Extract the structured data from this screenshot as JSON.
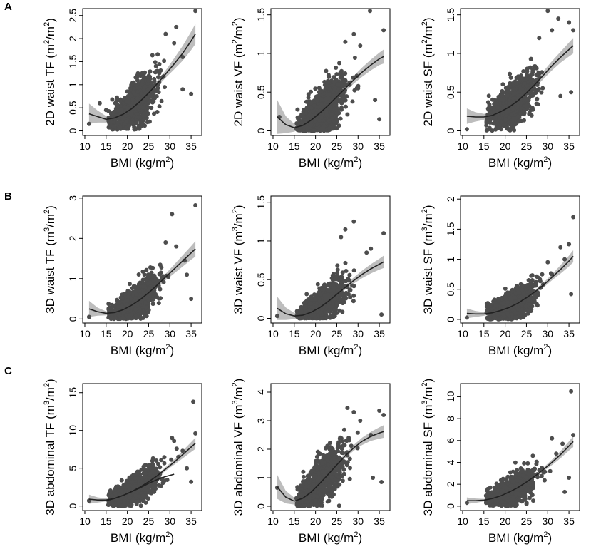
{
  "colors": {
    "point": "#4d4d4d",
    "line": "#222222",
    "band": "#bdbdbd",
    "axis": "#000000",
    "background": "#ffffff"
  },
  "rows": [
    {
      "letter": "A"
    },
    {
      "letter": "B"
    },
    {
      "letter": "C"
    }
  ],
  "shared": {
    "xlabel": "BMI (kg/m²)",
    "xlabel_base": "BMI (kg/m",
    "xlabel_sup": "2",
    "xlabel_close": ")"
  },
  "chart_data": [
    {
      "panel": "A-1",
      "type": "scatter",
      "ylabel": "2D waist TF (m²/m²)",
      "ylabel_prefix": "2D waist TF",
      "unit_num_sup": "2",
      "unit_den_sup": "2",
      "xlim": [
        9.5,
        37.5
      ],
      "ylim": [
        -0.1,
        2.65
      ],
      "xticks": [
        10,
        15,
        20,
        25,
        30,
        35
      ],
      "yticks": [
        0,
        0.5,
        1,
        1.5,
        2,
        2.5
      ],
      "fit": {
        "x": [
          11,
          13,
          15,
          17,
          19,
          21,
          23,
          25,
          27,
          29,
          31,
          33,
          35,
          36
        ],
        "y": [
          0.37,
          0.31,
          0.25,
          0.28,
          0.36,
          0.48,
          0.64,
          0.82,
          1.02,
          1.23,
          1.45,
          1.68,
          1.95,
          2.1
        ],
        "band": [
          0.22,
          0.13,
          0.07,
          0.04,
          0.03,
          0.03,
          0.03,
          0.04,
          0.06,
          0.08,
          0.12,
          0.16,
          0.2,
          0.22
        ]
      },
      "cloud": {
        "x_center": 21.5,
        "x_spread": 2.6,
        "slope_scale": 1.0,
        "noise": 0.28,
        "min_y": 0.03
      },
      "outliers": [
        [
          36,
          2.6
        ],
        [
          35,
          0.8
        ],
        [
          31.5,
          2.25
        ],
        [
          33,
          1.6
        ],
        [
          29,
          2.1
        ],
        [
          11,
          0.15
        ],
        [
          13.5,
          0.6
        ],
        [
          15,
          0.45
        ],
        [
          33,
          0.9
        ],
        [
          31,
          1.9
        ]
      ]
    },
    {
      "panel": "A-2",
      "type": "scatter",
      "ylabel": "2D waist VF (m²/m²)",
      "ylabel_prefix": "2D waist VF",
      "unit_num_sup": "2",
      "unit_den_sup": "2",
      "xlim": [
        9.5,
        37.5
      ],
      "ylim": [
        -0.06,
        1.58
      ],
      "xticks": [
        10,
        15,
        20,
        25,
        30,
        35
      ],
      "yticks": [
        0,
        0.5,
        1,
        1.5
      ],
      "fit": {
        "x": [
          11,
          13,
          15,
          17,
          19,
          21,
          23,
          25,
          27,
          29,
          31,
          33,
          35,
          36
        ],
        "y": [
          0.18,
          0.08,
          0.04,
          0.07,
          0.14,
          0.23,
          0.33,
          0.44,
          0.55,
          0.66,
          0.76,
          0.85,
          0.93,
          0.96
        ],
        "band": [
          0.22,
          0.11,
          0.05,
          0.03,
          0.02,
          0.02,
          0.02,
          0.03,
          0.04,
          0.05,
          0.06,
          0.07,
          0.08,
          0.09
        ]
      },
      "cloud": {
        "x_center": 21.5,
        "x_spread": 2.6,
        "slope_scale": 1.0,
        "noise": 0.18,
        "min_y": 0.0
      },
      "outliers": [
        [
          32.8,
          1.55
        ],
        [
          36,
          1.3
        ],
        [
          29,
          1.25
        ],
        [
          30.5,
          1.1
        ],
        [
          34,
          0.4
        ],
        [
          35,
          0.15
        ],
        [
          11.5,
          0.18
        ],
        [
          27,
          1.15
        ],
        [
          30,
          0.55
        ]
      ]
    },
    {
      "panel": "A-3",
      "type": "scatter",
      "ylabel": "2D waist SF (m²/m²)",
      "ylabel_prefix": "2D waist SF",
      "unit_num_sup": "2",
      "unit_den_sup": "2",
      "xlim": [
        9.5,
        37.5
      ],
      "ylim": [
        -0.06,
        1.58
      ],
      "xticks": [
        10,
        15,
        20,
        25,
        30,
        35
      ],
      "yticks": [
        0,
        0.5,
        1,
        1.5
      ],
      "fit": {
        "x": [
          11,
          13,
          15,
          17,
          19,
          21,
          23,
          25,
          27,
          29,
          31,
          33,
          35,
          36
        ],
        "y": [
          0.19,
          0.18,
          0.18,
          0.2,
          0.25,
          0.31,
          0.39,
          0.49,
          0.6,
          0.72,
          0.84,
          0.95,
          1.05,
          1.1
        ],
        "band": [
          0.1,
          0.06,
          0.04,
          0.03,
          0.02,
          0.02,
          0.02,
          0.03,
          0.04,
          0.05,
          0.06,
          0.07,
          0.09,
          0.1
        ]
      },
      "cloud": {
        "x_center": 21.5,
        "x_spread": 2.6,
        "slope_scale": 1.0,
        "noise": 0.17,
        "min_y": 0.0
      },
      "outliers": [
        [
          30,
          1.55
        ],
        [
          35,
          1.4
        ],
        [
          36,
          1.3
        ],
        [
          32.5,
          1.45
        ],
        [
          33,
          0.45
        ],
        [
          35.5,
          0.5
        ],
        [
          11,
          0.02
        ],
        [
          31,
          1.3
        ],
        [
          28,
          1.2
        ]
      ]
    },
    {
      "panel": "B-1",
      "type": "scatter",
      "ylabel": "3D waist TF (m³/m²)",
      "ylabel_prefix": "3D waist TF",
      "unit_num_sup": "3",
      "unit_den_sup": "2",
      "xlim": [
        9.5,
        37.5
      ],
      "ylim": [
        -0.1,
        3.05
      ],
      "xticks": [
        10,
        15,
        20,
        25,
        30,
        35
      ],
      "yticks": [
        0,
        1,
        2,
        3
      ],
      "fit": {
        "x": [
          11,
          13,
          15,
          17,
          19,
          21,
          23,
          25,
          27,
          29,
          31,
          33,
          35,
          36
        ],
        "y": [
          0.25,
          0.18,
          0.14,
          0.16,
          0.23,
          0.34,
          0.48,
          0.65,
          0.84,
          1.04,
          1.24,
          1.44,
          1.64,
          1.74
        ],
        "band": [
          0.2,
          0.1,
          0.05,
          0.03,
          0.03,
          0.03,
          0.03,
          0.04,
          0.06,
          0.08,
          0.11,
          0.14,
          0.17,
          0.19
        ]
      },
      "cloud": {
        "x_center": 21.5,
        "x_spread": 2.6,
        "slope_scale": 1.0,
        "noise": 0.25,
        "min_y": 0.0
      },
      "outliers": [
        [
          36,
          2.82
        ],
        [
          30.5,
          2.6
        ],
        [
          35,
          0.5
        ],
        [
          33.5,
          1.45
        ],
        [
          34,
          1.1
        ],
        [
          11,
          0.05
        ],
        [
          29,
          1.9
        ],
        [
          31.5,
          1.8
        ]
      ]
    },
    {
      "panel": "B-2",
      "type": "scatter",
      "ylabel": "3D waist VF (m³/m²)",
      "ylabel_prefix": "3D waist VF",
      "unit_num_sup": "3",
      "unit_den_sup": "2",
      "xlim": [
        9.5,
        37.5
      ],
      "ylim": [
        -0.06,
        1.58
      ],
      "xticks": [
        10,
        15,
        20,
        25,
        30,
        35
      ],
      "yticks": [
        0,
        0.5,
        1,
        1.5
      ],
      "fit": {
        "x": [
          11,
          13,
          15,
          17,
          19,
          21,
          23,
          25,
          27,
          29,
          31,
          33,
          35,
          36
        ],
        "y": [
          0.13,
          0.06,
          0.03,
          0.04,
          0.08,
          0.14,
          0.22,
          0.31,
          0.4,
          0.49,
          0.57,
          0.64,
          0.7,
          0.73
        ],
        "band": [
          0.15,
          0.08,
          0.04,
          0.02,
          0.02,
          0.02,
          0.02,
          0.02,
          0.03,
          0.04,
          0.05,
          0.06,
          0.07,
          0.08
        ]
      },
      "cloud": {
        "x_center": 21.5,
        "x_spread": 2.6,
        "slope_scale": 1.0,
        "noise": 0.13,
        "min_y": 0.0
      },
      "outliers": [
        [
          29,
          1.25
        ],
        [
          27,
          1.15
        ],
        [
          36,
          1.1
        ],
        [
          32,
          0.85
        ],
        [
          35.5,
          0.05
        ],
        [
          11,
          0.03
        ],
        [
          33,
          0.9
        ],
        [
          26,
          1.05
        ]
      ]
    },
    {
      "panel": "B-3",
      "type": "scatter",
      "ylabel": "3D waist SF (m³/m²)",
      "ylabel_prefix": "3D waist SF",
      "unit_num_sup": "3",
      "unit_den_sup": "2",
      "xlim": [
        9.5,
        37.5
      ],
      "ylim": [
        -0.06,
        2.05
      ],
      "xticks": [
        10,
        15,
        20,
        25,
        30,
        35
      ],
      "yticks": [
        0,
        0.5,
        1,
        1.5,
        2
      ],
      "fit": {
        "x": [
          11,
          13,
          15,
          17,
          19,
          21,
          23,
          25,
          27,
          29,
          31,
          33,
          35,
          36
        ],
        "y": [
          0.1,
          0.09,
          0.09,
          0.11,
          0.15,
          0.2,
          0.27,
          0.36,
          0.46,
          0.57,
          0.7,
          0.83,
          0.97,
          1.05
        ],
        "band": [
          0.08,
          0.05,
          0.03,
          0.02,
          0.02,
          0.02,
          0.02,
          0.02,
          0.03,
          0.04,
          0.05,
          0.07,
          0.09,
          0.1
        ]
      },
      "cloud": {
        "x_center": 21.5,
        "x_spread": 2.6,
        "slope_scale": 1.0,
        "noise": 0.14,
        "min_y": 0.0
      },
      "outliers": [
        [
          36,
          1.7
        ],
        [
          33,
          1.2
        ],
        [
          35,
          1.25
        ],
        [
          34,
          1.0
        ],
        [
          31,
          0.75
        ],
        [
          35.5,
          0.42
        ],
        [
          11,
          0.03
        ],
        [
          30,
          0.95
        ]
      ]
    },
    {
      "panel": "C-1",
      "type": "scatter",
      "ylabel": "3D abdominal TF (m³/m²)",
      "ylabel_prefix": "3D abdominal TF",
      "unit_num_sup": "3",
      "unit_den_sup": "2",
      "xlim": [
        9.5,
        37.5
      ],
      "ylim": [
        -0.6,
        16.2
      ],
      "xticks": [
        10,
        15,
        20,
        25,
        30,
        35
      ],
      "yticks": [
        0,
        5,
        10,
        15
      ],
      "fit": {
        "x": [
          11,
          13,
          15,
          17,
          19,
          21,
          23,
          25,
          27,
          29,
          31,
          33,
          35,
          36
        ],
        "y": [
          0.9,
          0.8,
          0.8,
          1.0,
          1.4,
          1.9,
          2.5,
          3.2,
          4.0,
          4.9,
          5.8,
          6.8,
          7.8,
          8.3
        ],
        "band": [
          0.6,
          0.35,
          0.2,
          0.12,
          0.1,
          0.1,
          0.1,
          0.12,
          0.18,
          0.25,
          0.35,
          0.5,
          0.65,
          0.75
        ]
      },
      "second_line": {
        "x": [
          15,
          17,
          19,
          21,
          23,
          25,
          27,
          29,
          31
        ],
        "y": [
          0.7,
          1.0,
          1.4,
          1.9,
          2.4,
          3.0,
          3.5,
          3.9,
          4.2
        ]
      },
      "cloud": {
        "x_center": 21.5,
        "x_spread": 2.6,
        "slope_scale": 1.0,
        "noise": 1.1,
        "min_y": 0.0
      },
      "outliers": [
        [
          35.5,
          13.8
        ],
        [
          36,
          9.6
        ],
        [
          33,
          7.3
        ],
        [
          31,
          8.6
        ],
        [
          30.5,
          9.0
        ],
        [
          35,
          3.2
        ],
        [
          11,
          0.7
        ],
        [
          32,
          6.5
        ],
        [
          34,
          5.0
        ]
      ]
    },
    {
      "panel": "C-2",
      "type": "scatter",
      "ylabel": "3D abdominal VF (m³/m²)",
      "ylabel_prefix": "3D abdominal VF",
      "unit_num_sup": "3",
      "unit_den_sup": "2",
      "xlim": [
        9.5,
        37.5
      ],
      "ylim": [
        -0.15,
        4.3
      ],
      "xticks": [
        10,
        15,
        20,
        25,
        30,
        35
      ],
      "yticks": [
        0,
        1,
        2,
        3,
        4
      ],
      "fit": {
        "x": [
          11,
          13,
          15,
          17,
          19,
          21,
          23,
          25,
          27,
          29,
          31,
          33,
          35,
          36
        ],
        "y": [
          0.68,
          0.32,
          0.18,
          0.28,
          0.5,
          0.8,
          1.12,
          1.45,
          1.77,
          2.05,
          2.28,
          2.45,
          2.57,
          2.62
        ],
        "band": [
          0.42,
          0.22,
          0.12,
          0.06,
          0.05,
          0.05,
          0.05,
          0.06,
          0.08,
          0.1,
          0.13,
          0.16,
          0.2,
          0.22
        ]
      },
      "cloud": {
        "x_center": 21.5,
        "x_spread": 2.6,
        "slope_scale": 1.0,
        "noise": 0.48,
        "min_y": 0.0
      },
      "outliers": [
        [
          27.5,
          3.45
        ],
        [
          29,
          3.3
        ],
        [
          35,
          3.35
        ],
        [
          36,
          3.2
        ],
        [
          33,
          2.5
        ],
        [
          35.5,
          0.85
        ],
        [
          33.5,
          1.0
        ],
        [
          11,
          0.65
        ],
        [
          30.5,
          3.0
        ]
      ]
    },
    {
      "panel": "C-3",
      "type": "scatter",
      "ylabel": "3D abdominal SF (m³/m²)",
      "ylabel_prefix": "3D abdominal SF",
      "unit_num_sup": "3",
      "unit_den_sup": "2",
      "xlim": [
        9.5,
        37.5
      ],
      "ylim": [
        -0.4,
        11.2
      ],
      "xticks": [
        10,
        15,
        20,
        25,
        30,
        35
      ],
      "yticks": [
        0,
        2,
        4,
        6,
        8,
        10
      ],
      "fit": {
        "x": [
          11,
          13,
          15,
          17,
          19,
          21,
          23,
          25,
          27,
          29,
          31,
          33,
          35,
          36
        ],
        "y": [
          0.5,
          0.5,
          0.55,
          0.7,
          0.95,
          1.3,
          1.7,
          2.2,
          2.75,
          3.35,
          4.0,
          4.7,
          5.5,
          5.9
        ],
        "band": [
          0.3,
          0.2,
          0.12,
          0.08,
          0.06,
          0.06,
          0.06,
          0.08,
          0.12,
          0.17,
          0.24,
          0.32,
          0.42,
          0.5
        ]
      },
      "cloud": {
        "x_center": 21.5,
        "x_spread": 2.6,
        "slope_scale": 1.0,
        "noise": 0.75,
        "min_y": 0.0
      },
      "outliers": [
        [
          35.5,
          10.5
        ],
        [
          36,
          6.5
        ],
        [
          33.5,
          5.7
        ],
        [
          31,
          6.2
        ],
        [
          35,
          2.6
        ],
        [
          34,
          1.3
        ],
        [
          11,
          0.3
        ],
        [
          32,
          4.8
        ]
      ]
    }
  ]
}
